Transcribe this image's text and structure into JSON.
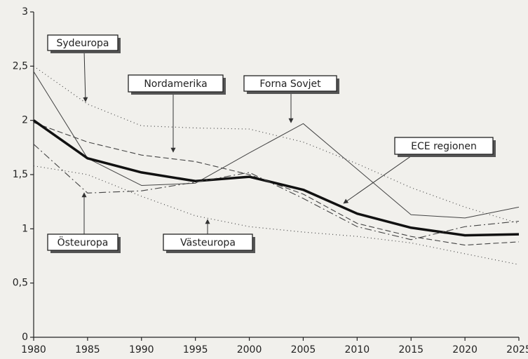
{
  "chart_data": {
    "type": "line",
    "x": [
      1980,
      1985,
      1990,
      1995,
      2000,
      2005,
      2010,
      2015,
      2020,
      2025
    ],
    "xlim": [
      1980,
      2025
    ],
    "xticks": [
      1980,
      1985,
      1990,
      1995,
      2000,
      2005,
      2010,
      2015,
      2020,
      2025
    ],
    "ylim": [
      0,
      3
    ],
    "yticks": [
      0,
      {
        "value": 0.5,
        "label": "0,5"
      },
      1,
      {
        "value": 1.5,
        "label": "1,5"
      },
      2,
      {
        "value": 2.5,
        "label": "2,5"
      },
      3
    ],
    "series": [
      {
        "name": "Sydeuropa",
        "color": "#444",
        "style": "dotted",
        "values": [
          2.5,
          2.15,
          1.95,
          1.93,
          1.92,
          1.8,
          1.6,
          1.38,
          1.2,
          1.05
        ]
      },
      {
        "name": "Nordamerika",
        "color": "#444",
        "style": "dashed",
        "values": [
          1.98,
          1.8,
          1.68,
          1.62,
          1.5,
          1.32,
          1.05,
          0.93,
          0.85,
          0.88
        ]
      },
      {
        "name": "Forna Sovjet",
        "color": "#444",
        "style": "solid",
        "values": [
          2.45,
          1.65,
          1.4,
          1.42,
          1.7,
          1.97,
          1.55,
          1.13,
          1.1,
          1.2
        ]
      },
      {
        "name": "ECE regionen",
        "color": "#111",
        "style": "thick",
        "values": [
          2.0,
          1.65,
          1.52,
          1.44,
          1.48,
          1.36,
          1.14,
          1.01,
          0.94,
          0.95
        ]
      },
      {
        "name": "Östeuropa",
        "color": "#444",
        "style": "dashdot",
        "values": [
          1.78,
          1.33,
          1.35,
          1.43,
          1.52,
          1.28,
          1.02,
          0.9,
          1.02,
          1.07
        ]
      },
      {
        "name": "Västeuropa",
        "color": "#444",
        "style": "dotted",
        "values": [
          1.58,
          1.5,
          1.3,
          1.12,
          1.02,
          0.97,
          0.93,
          0.87,
          0.77,
          0.67
        ]
      }
    ]
  }
}
